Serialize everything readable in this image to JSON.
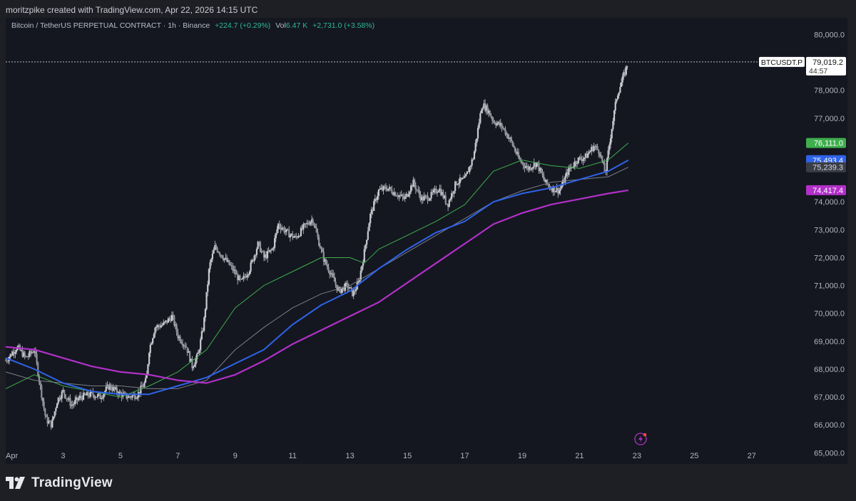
{
  "header": {
    "caption": "moritzpike created with TradingView.com, Apr 22, 2026 14:15 UTC"
  },
  "legend": {
    "symbol": "Bitcoin / TetherUS PERPETUAL CONTRACT · 1h · Binance",
    "change": "+224.7 (+0.29%)",
    "vol_label": "Vol",
    "vol_value": "6.47 K",
    "period_change": "+2,731.0 (+3.58%)"
  },
  "footer": {
    "brand": "TradingView"
  },
  "colors": {
    "background": "#141720",
    "candle": "#c8cad0",
    "ma_green": "#3fae4d",
    "ma_gray": "#7a7d86",
    "ma_blue": "#2f63e8",
    "ma_purple": "#b230c8"
  },
  "chart_data": {
    "type": "line",
    "title": "Bitcoin / TetherUS PERPETUAL CONTRACT · 1h · Binance",
    "xlabel": "",
    "ylabel": "",
    "y_scale": "linear",
    "ylim": [
      64600,
      80600
    ],
    "xlim": [
      1,
      28
    ],
    "grid": false,
    "x_ticks": [
      {
        "day": 1,
        "label": "Apr"
      },
      {
        "day": 3,
        "label": "3"
      },
      {
        "day": 5,
        "label": "5"
      },
      {
        "day": 7,
        "label": "7"
      },
      {
        "day": 9,
        "label": "9"
      },
      {
        "day": 11,
        "label": "11"
      },
      {
        "day": 13,
        "label": "13"
      },
      {
        "day": 15,
        "label": "15"
      },
      {
        "day": 17,
        "label": "17"
      },
      {
        "day": 19,
        "label": "19"
      },
      {
        "day": 21,
        "label": "21"
      },
      {
        "day": 23,
        "label": "23"
      },
      {
        "day": 25,
        "label": "25"
      },
      {
        "day": 27,
        "label": "27"
      }
    ],
    "y_ticks": [
      {
        "value": 80000,
        "label": "80,000.0"
      },
      {
        "value": 78000,
        "label": "78,000.0"
      },
      {
        "value": 77000,
        "label": "77,000.0"
      },
      {
        "value": 74000,
        "label": "74,000.0"
      },
      {
        "value": 73000,
        "label": "73,000.0"
      },
      {
        "value": 72000,
        "label": "72,000.0"
      },
      {
        "value": 71000,
        "label": "71,000.0"
      },
      {
        "value": 70000,
        "label": "70,000.0"
      },
      {
        "value": 69000,
        "label": "69,000.0"
      },
      {
        "value": 68000,
        "label": "68,000.0"
      },
      {
        "value": 67000,
        "label": "67,000.0"
      },
      {
        "value": 66000,
        "label": "66,000.0"
      },
      {
        "value": 65000,
        "label": "65,000.0"
      }
    ],
    "price_line": {
      "value": 79019.2,
      "symbol_label": "BTCUSDT.P",
      "price_label": "79,019.2",
      "countdown": "44:57"
    },
    "price_price_tags": [
      {
        "value": 76111.0,
        "label": "76,111.0",
        "color": "#3fae4d",
        "text_color": "#ffffff"
      },
      {
        "value": 75493.4,
        "label": "75,493.4",
        "color": "#2f63e8",
        "text_color": "#ffffff"
      },
      {
        "value": 75239.3,
        "label": "75,239.3",
        "color": "#3a3d46",
        "text_color": "#d6d8de"
      },
      {
        "value": 74417.4,
        "label": "74,417.4",
        "color": "#b230c8",
        "text_color": "#ffffff"
      }
    ],
    "price_path": [
      [
        1.0,
        68300
      ],
      [
        1.4,
        68800
      ],
      [
        1.7,
        68400
      ],
      [
        2.0,
        68700
      ],
      [
        2.2,
        67400
      ],
      [
        2.4,
        66200
      ],
      [
        2.6,
        66000
      ],
      [
        2.8,
        66900
      ],
      [
        3.0,
        67200
      ],
      [
        3.3,
        66700
      ],
      [
        3.6,
        67000
      ],
      [
        4.0,
        67100
      ],
      [
        4.3,
        67000
      ],
      [
        4.6,
        67400
      ],
      [
        5.0,
        67100
      ],
      [
        5.3,
        67000
      ],
      [
        5.6,
        67100
      ],
      [
        5.9,
        67600
      ],
      [
        6.0,
        68700
      ],
      [
        6.2,
        69500
      ],
      [
        6.5,
        69600
      ],
      [
        6.8,
        69900
      ],
      [
        7.0,
        69200
      ],
      [
        7.3,
        68800
      ],
      [
        7.5,
        68100
      ],
      [
        7.7,
        68500
      ],
      [
        7.9,
        69600
      ],
      [
        8.1,
        71700
      ],
      [
        8.3,
        72400
      ],
      [
        8.6,
        72000
      ],
      [
        8.9,
        71600
      ],
      [
        9.2,
        71100
      ],
      [
        9.5,
        71600
      ],
      [
        9.8,
        72500
      ],
      [
        10.0,
        72000
      ],
      [
        10.3,
        72300
      ],
      [
        10.5,
        73200
      ],
      [
        10.8,
        72900
      ],
      [
        11.1,
        72700
      ],
      [
        11.4,
        73100
      ],
      [
        11.7,
        73400
      ],
      [
        11.9,
        72600
      ],
      [
        12.1,
        71900
      ],
      [
        12.3,
        71500
      ],
      [
        12.6,
        70800
      ],
      [
        12.9,
        71000
      ],
      [
        13.1,
        70700
      ],
      [
        13.3,
        71100
      ],
      [
        13.5,
        72200
      ],
      [
        13.7,
        73500
      ],
      [
        14.0,
        74400
      ],
      [
        14.3,
        74500
      ],
      [
        14.6,
        74300
      ],
      [
        14.9,
        74100
      ],
      [
        15.2,
        74700
      ],
      [
        15.5,
        74100
      ],
      [
        15.8,
        74200
      ],
      [
        16.1,
        74500
      ],
      [
        16.4,
        73900
      ],
      [
        16.7,
        74700
      ],
      [
        17.0,
        74800
      ],
      [
        17.3,
        75600
      ],
      [
        17.6,
        77500
      ],
      [
        17.8,
        77300
      ],
      [
        18.0,
        76900
      ],
      [
        18.3,
        76700
      ],
      [
        18.6,
        76200
      ],
      [
        18.9,
        75500
      ],
      [
        19.2,
        75200
      ],
      [
        19.5,
        75400
      ],
      [
        19.8,
        74700
      ],
      [
        20.0,
        74500
      ],
      [
        20.3,
        74400
      ],
      [
        20.6,
        75100
      ],
      [
        20.9,
        75500
      ],
      [
        21.2,
        75600
      ],
      [
        21.5,
        76000
      ],
      [
        21.7,
        75800
      ],
      [
        21.9,
        75000
      ],
      [
        22.1,
        76500
      ],
      [
        22.3,
        77800
      ],
      [
        22.5,
        78400
      ],
      [
        22.7,
        79019
      ]
    ],
    "series": [
      {
        "color": "#3fae4d",
        "width": 1,
        "points": [
          [
            1.0,
            67300
          ],
          [
            2.0,
            67800
          ],
          [
            3.0,
            67400
          ],
          [
            4.0,
            67200
          ],
          [
            5.0,
            67000
          ],
          [
            6.0,
            67400
          ],
          [
            7.0,
            67900
          ],
          [
            8.0,
            68700
          ],
          [
            9.0,
            70200
          ],
          [
            10.0,
            71000
          ],
          [
            11.0,
            71500
          ],
          [
            12.0,
            72000
          ],
          [
            13.0,
            72000
          ],
          [
            13.5,
            71800
          ],
          [
            14.0,
            72300
          ],
          [
            15.0,
            72800
          ],
          [
            16.0,
            73300
          ],
          [
            17.0,
            73900
          ],
          [
            18.0,
            75100
          ],
          [
            19.0,
            75500
          ],
          [
            20.0,
            75300
          ],
          [
            21.0,
            75200
          ],
          [
            22.0,
            75500
          ],
          [
            22.7,
            76111
          ]
        ]
      },
      {
        "color": "#7a7d86",
        "width": 1,
        "points": [
          [
            1.0,
            67900
          ],
          [
            2.0,
            67600
          ],
          [
            3.0,
            67500
          ],
          [
            4.0,
            67400
          ],
          [
            5.0,
            67400
          ],
          [
            6.0,
            67300
          ],
          [
            7.0,
            67300
          ],
          [
            8.0,
            67600
          ],
          [
            9.0,
            68700
          ],
          [
            10.0,
            69500
          ],
          [
            11.0,
            70200
          ],
          [
            12.0,
            70700
          ],
          [
            13.0,
            71000
          ],
          [
            14.0,
            71600
          ],
          [
            15.0,
            72200
          ],
          [
            16.0,
            72800
          ],
          [
            17.0,
            73400
          ],
          [
            18.0,
            74000
          ],
          [
            19.0,
            74400
          ],
          [
            20.0,
            74700
          ],
          [
            21.0,
            74800
          ],
          [
            22.0,
            74900
          ],
          [
            22.7,
            75239
          ]
        ]
      },
      {
        "color": "#2f63e8",
        "width": 2,
        "points": [
          [
            1.0,
            68400
          ],
          [
            2.0,
            68000
          ],
          [
            3.0,
            67500
          ],
          [
            4.0,
            67200
          ],
          [
            5.0,
            67100
          ],
          [
            6.0,
            67100
          ],
          [
            7.0,
            67400
          ],
          [
            8.0,
            67700
          ],
          [
            9.0,
            68200
          ],
          [
            10.0,
            68700
          ],
          [
            11.0,
            69600
          ],
          [
            12.0,
            70300
          ],
          [
            13.0,
            70800
          ],
          [
            14.0,
            71600
          ],
          [
            15.0,
            72300
          ],
          [
            16.0,
            72900
          ],
          [
            17.0,
            73300
          ],
          [
            18.0,
            74000
          ],
          [
            19.0,
            74300
          ],
          [
            20.0,
            74500
          ],
          [
            21.0,
            74800
          ],
          [
            22.0,
            75100
          ],
          [
            22.7,
            75493
          ]
        ]
      },
      {
        "color": "#b230c8",
        "width": 2.2,
        "points": [
          [
            1.0,
            68800
          ],
          [
            2.0,
            68700
          ],
          [
            3.0,
            68400
          ],
          [
            4.0,
            68100
          ],
          [
            5.0,
            67900
          ],
          [
            6.0,
            67800
          ],
          [
            7.0,
            67600
          ],
          [
            8.0,
            67500
          ],
          [
            9.0,
            67800
          ],
          [
            10.0,
            68300
          ],
          [
            11.0,
            68900
          ],
          [
            12.0,
            69400
          ],
          [
            13.0,
            69900
          ],
          [
            14.0,
            70400
          ],
          [
            15.0,
            71100
          ],
          [
            16.0,
            71800
          ],
          [
            17.0,
            72500
          ],
          [
            18.0,
            73200
          ],
          [
            19.0,
            73600
          ],
          [
            20.0,
            73900
          ],
          [
            21.0,
            74100
          ],
          [
            22.0,
            74300
          ],
          [
            22.7,
            74417
          ]
        ]
      }
    ]
  }
}
